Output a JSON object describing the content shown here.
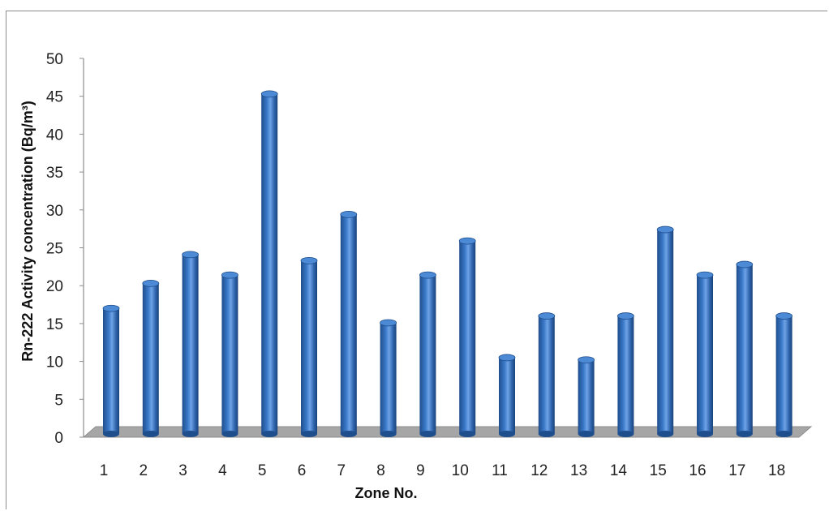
{
  "chart_data": {
    "type": "bar",
    "style": "3d-cylinder",
    "categories": [
      "1",
      "2",
      "3",
      "4",
      "5",
      "6",
      "7",
      "8",
      "9",
      "10",
      "11",
      "12",
      "13",
      "14",
      "15",
      "16",
      "17",
      "18"
    ],
    "values": [
      17,
      20.3,
      24.1,
      21.4,
      45.3,
      23.3,
      29.4,
      15.1,
      21.4,
      25.9,
      10.5,
      16,
      10.2,
      16,
      27.4,
      21.4,
      22.8,
      16
    ],
    "xlabel": "Zone No.",
    "ylabel": "Rn-222 Activity concentration (Bq/m³)",
    "ylim": [
      0,
      50
    ],
    "yticks": [
      "0",
      "5",
      "10",
      "15",
      "20",
      "25",
      "30",
      "35",
      "40",
      "45",
      "50"
    ],
    "grid": false,
    "legend": "none",
    "colors": {
      "bar_dark": "#1f4e8c",
      "bar_mid": "#3a79c9",
      "bar_light": "#6ea3e6",
      "bar_top": "#4d8ad6",
      "floor": "#a6a6a6",
      "axis": "#8c8c8c"
    }
  }
}
